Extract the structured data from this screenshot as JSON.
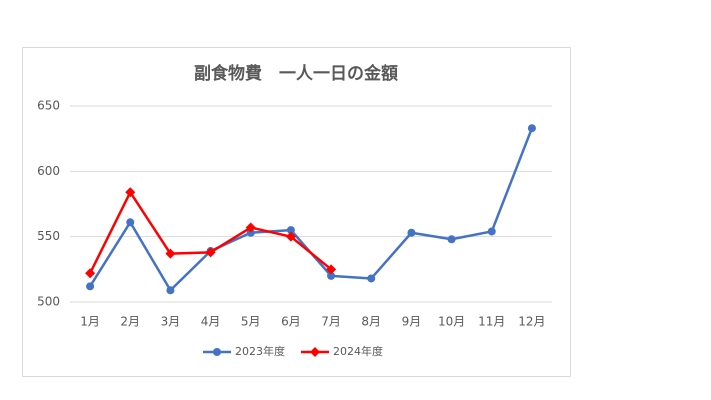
{
  "chart_data": {
    "type": "line",
    "title": "副食物費　一人一日の金額",
    "categories": [
      "1月",
      "2月",
      "3月",
      "4月",
      "5月",
      "6月",
      "7月",
      "8月",
      "9月",
      "10月",
      "11月",
      "12月"
    ],
    "series": [
      {
        "name": "2023年度",
        "color": "#4472c4",
        "marker": "circle",
        "values": [
          512,
          561,
          509,
          539,
          553,
          555,
          520,
          518,
          553,
          548,
          554,
          633
        ]
      },
      {
        "name": "2024年度",
        "color": "#ff0000",
        "marker": "diamond",
        "values": [
          522,
          584,
          537,
          538,
          557,
          550,
          525,
          null,
          null,
          null,
          null,
          null
        ]
      }
    ],
    "ylim": [
      500,
      650
    ],
    "yticks": [
      500,
      550,
      600,
      650
    ],
    "grid": true,
    "legend": "bottom"
  }
}
